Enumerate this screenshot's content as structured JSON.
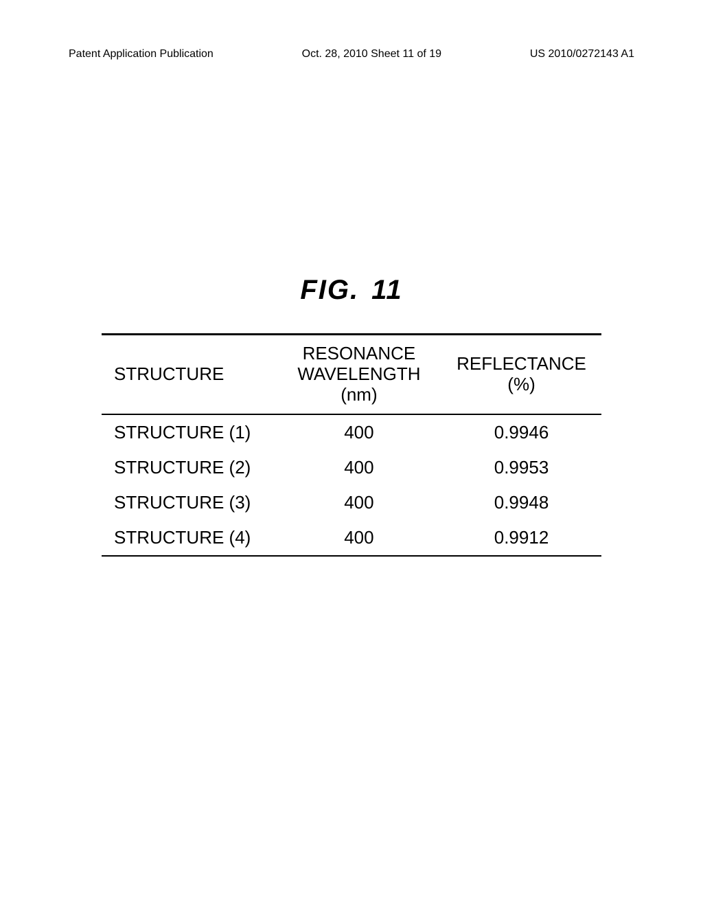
{
  "header": {
    "left": "Patent Application Publication",
    "center": "Oct. 28, 2010  Sheet 11 of 19",
    "right": "US 2010/0272143 A1"
  },
  "figure": {
    "prefix": "FIG.",
    "number": "11"
  },
  "table": {
    "type": "table",
    "background_color": "#ffffff",
    "text_color": "#000000",
    "border_color": "#000000",
    "header_fontsize": 26,
    "cell_fontsize": 26,
    "columns": [
      {
        "label": "STRUCTURE",
        "align": "left",
        "width_pct": 35
      },
      {
        "label_line1": "RESONANCE",
        "label_line2": "WAVELENGTH (nm)",
        "align": "center",
        "width_pct": 33
      },
      {
        "label": "REFLECTANCE (%)",
        "align": "center",
        "width_pct": 32
      }
    ],
    "rows": [
      {
        "structure": "STRUCTURE (1)",
        "wavelength": "400",
        "reflectance": "0.9946"
      },
      {
        "structure": "STRUCTURE (2)",
        "wavelength": "400",
        "reflectance": "0.9953"
      },
      {
        "structure": "STRUCTURE (3)",
        "wavelength": "400",
        "reflectance": "0.9948"
      },
      {
        "structure": "STRUCTURE (4)",
        "wavelength": "400",
        "reflectance": "0.9912"
      }
    ]
  }
}
